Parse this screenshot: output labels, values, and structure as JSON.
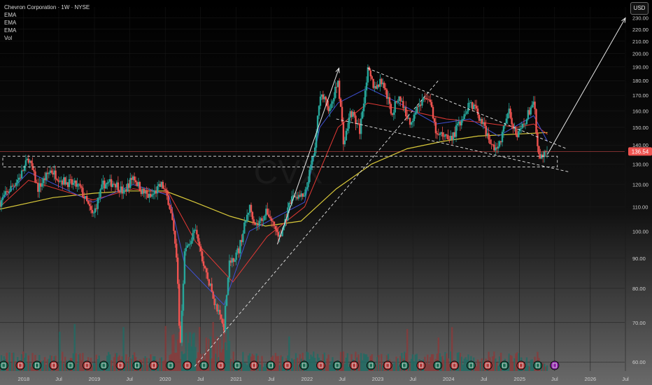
{
  "header": {
    "symbol_title": "Chevron Corporation · 1W · NYSE",
    "indicators": [
      "EMA",
      "EMA",
      "EMA",
      "Vol"
    ],
    "currency": "USD"
  },
  "watermark": {
    "ticker": "CVX"
  },
  "colors": {
    "up": "#26a69a",
    "down": "#ef5350",
    "ema_fast": "#3f51d6",
    "ema_mid": "#e53935",
    "ema_slow": "#d8c83a",
    "price_line": "#ef5350",
    "annotation": "#e6e6e6",
    "volume_up": "#1f6b64",
    "volume_down": "#8a3a3a"
  },
  "chart_data": {
    "type": "candlestick",
    "interval": "1W",
    "y_axis": {
      "min": 55,
      "max": 240,
      "scale": "log",
      "ticks": [
        60,
        70,
        80,
        90,
        100,
        110,
        120,
        130,
        140,
        150,
        160,
        170,
        180,
        190,
        200,
        210,
        220,
        230
      ]
    },
    "x_axis": {
      "range": [
        "2017-09-01",
        "2026-11-15"
      ],
      "ticks": [
        {
          "date": "2018-01-01",
          "label": "2018"
        },
        {
          "date": "2018-07-01",
          "label": "Jul"
        },
        {
          "date": "2019-01-01",
          "label": "2019"
        },
        {
          "date": "2019-07-01",
          "label": "Jul"
        },
        {
          "date": "2020-01-01",
          "label": "2020"
        },
        {
          "date": "2020-07-01",
          "label": "Jul"
        },
        {
          "date": "2021-01-01",
          "label": "2021"
        },
        {
          "date": "2021-07-01",
          "label": "Jul"
        },
        {
          "date": "2022-01-01",
          "label": "2022"
        },
        {
          "date": "2022-07-01",
          "label": "Jul"
        },
        {
          "date": "2023-01-01",
          "label": "2023"
        },
        {
          "date": "2023-07-01",
          "label": "Jul"
        },
        {
          "date": "2024-01-01",
          "label": "2024"
        },
        {
          "date": "2024-07-01",
          "label": "Jul"
        },
        {
          "date": "2025-01-01",
          "label": "2025"
        },
        {
          "date": "2025-07-01",
          "label": "Jul"
        },
        {
          "date": "2026-01-01",
          "label": "2026"
        },
        {
          "date": "2026-07-01",
          "label": "Jul"
        }
      ]
    },
    "price_path": [
      [
        "2017-09-01",
        112
      ],
      [
        "2017-12-15",
        124
      ],
      [
        "2018-01-26",
        133
      ],
      [
        "2018-03-15",
        118
      ],
      [
        "2018-05-20",
        127
      ],
      [
        "2018-07-15",
        122
      ],
      [
        "2018-09-15",
        120
      ],
      [
        "2018-10-15",
        119
      ],
      [
        "2018-12-24",
        106
      ],
      [
        "2019-02-15",
        120
      ],
      [
        "2019-04-15",
        121
      ],
      [
        "2019-06-01",
        116
      ],
      [
        "2019-07-20",
        124
      ],
      [
        "2019-09-01",
        117
      ],
      [
        "2019-10-15",
        114
      ],
      [
        "2019-12-15",
        120
      ],
      [
        "2020-01-20",
        112
      ],
      [
        "2020-02-25",
        95
      ],
      [
        "2020-03-18",
        62
      ],
      [
        "2020-04-10",
        92
      ],
      [
        "2020-06-05",
        100
      ],
      [
        "2020-07-15",
        88
      ],
      [
        "2020-09-15",
        75
      ],
      [
        "2020-10-30",
        69
      ],
      [
        "2020-11-25",
        88
      ],
      [
        "2021-01-15",
        93
      ],
      [
        "2021-03-10",
        110
      ],
      [
        "2021-04-15",
        102
      ],
      [
        "2021-06-10",
        108
      ],
      [
        "2021-08-15",
        97
      ],
      [
        "2021-10-20",
        115
      ],
      [
        "2021-12-20",
        114
      ],
      [
        "2022-02-15",
        140
      ],
      [
        "2022-03-08",
        172
      ],
      [
        "2022-05-01",
        160
      ],
      [
        "2022-06-10",
        180
      ],
      [
        "2022-07-10",
        140
      ],
      [
        "2022-08-15",
        160
      ],
      [
        "2022-10-01",
        148
      ],
      [
        "2022-11-10",
        187
      ],
      [
        "2022-12-15",
        175
      ],
      [
        "2023-01-25",
        180
      ],
      [
        "2023-03-15",
        158
      ],
      [
        "2023-04-20",
        170
      ],
      [
        "2023-06-15",
        152
      ],
      [
        "2023-07-20",
        162
      ],
      [
        "2023-09-20",
        170
      ],
      [
        "2023-10-30",
        145
      ],
      [
        "2023-12-20",
        146
      ],
      [
        "2024-01-20",
        144
      ],
      [
        "2024-03-20",
        158
      ],
      [
        "2024-04-20",
        166
      ],
      [
        "2024-06-15",
        155
      ],
      [
        "2024-08-05",
        140
      ],
      [
        "2024-09-15",
        138
      ],
      [
        "2024-11-05",
        160
      ],
      [
        "2024-12-20",
        144
      ],
      [
        "2025-02-05",
        155
      ],
      [
        "2025-03-15",
        167
      ],
      [
        "2025-04-08",
        133
      ],
      [
        "2025-05-10",
        135
      ],
      [
        "2025-05-25",
        136.54
      ]
    ],
    "ema_fast_path": [
      [
        "2017-09-01",
        112
      ],
      [
        "2018-01-26",
        126
      ],
      [
        "2018-12-24",
        112
      ],
      [
        "2019-07-20",
        120
      ],
      [
        "2020-01-20",
        115
      ],
      [
        "2020-04-10",
        88
      ],
      [
        "2020-10-30",
        75
      ],
      [
        "2021-03-10",
        100
      ],
      [
        "2021-12-20",
        112
      ],
      [
        "2022-03-08",
        150
      ],
      [
        "2022-06-10",
        165
      ],
      [
        "2022-11-10",
        175
      ],
      [
        "2023-04-20",
        165
      ],
      [
        "2023-10-30",
        152
      ],
      [
        "2024-04-20",
        155
      ],
      [
        "2024-09-15",
        145
      ],
      [
        "2025-03-15",
        157
      ],
      [
        "2025-05-25",
        142
      ]
    ],
    "ema_mid_path": [
      [
        "2017-09-01",
        110
      ],
      [
        "2018-01-26",
        122
      ],
      [
        "2018-12-24",
        113
      ],
      [
        "2019-07-20",
        118
      ],
      [
        "2020-01-20",
        116
      ],
      [
        "2020-06-05",
        96
      ],
      [
        "2020-12-15",
        82
      ],
      [
        "2021-06-10",
        98
      ],
      [
        "2021-12-20",
        110
      ],
      [
        "2022-06-10",
        150
      ],
      [
        "2022-11-10",
        165
      ],
      [
        "2023-06-15",
        160
      ],
      [
        "2023-12-20",
        155
      ],
      [
        "2024-06-15",
        153
      ],
      [
        "2024-12-20",
        150
      ],
      [
        "2025-03-15",
        152
      ],
      [
        "2025-05-25",
        146
      ]
    ],
    "ema_slow_path": [
      [
        "2017-09-01",
        109
      ],
      [
        "2018-06-01",
        114
      ],
      [
        "2019-01-01",
        116
      ],
      [
        "2019-07-01",
        117
      ],
      [
        "2020-01-01",
        117
      ],
      [
        "2020-06-01",
        112
      ],
      [
        "2020-12-01",
        106
      ],
      [
        "2021-06-01",
        102
      ],
      [
        "2021-12-01",
        104
      ],
      [
        "2022-06-01",
        118
      ],
      [
        "2022-12-01",
        130
      ],
      [
        "2023-06-01",
        138
      ],
      [
        "2023-12-01",
        142
      ],
      [
        "2024-06-01",
        145
      ],
      [
        "2024-12-01",
        146
      ],
      [
        "2025-05-25",
        147
      ]
    ],
    "annotations": {
      "support_zone": {
        "from": "2017-09-01",
        "to": "2025-07-15",
        "price_top": 134,
        "price_bottom": 128.5
      },
      "wedge_upper": {
        "from": [
          "2022-11-10",
          189
        ],
        "to": [
          "2025-09-01",
          138
        ]
      },
      "wedge_lower": {
        "from": [
          "2022-06-01",
          155
        ],
        "to": [
          "2025-09-15",
          126
        ]
      },
      "rally_arrow_2021": {
        "from": [
          "2021-08-01",
          95
        ],
        "to": [
          "2022-06-15",
          189
        ]
      },
      "trendline_2020": {
        "from": [
          "2020-06-01",
          59
        ],
        "to": [
          "2023-11-15",
          181
        ]
      },
      "projection_arrow": {
        "from": [
          "2025-05-25",
          135
        ],
        "to": [
          "2026-07-01",
          230
        ]
      }
    },
    "last_price": 136.54
  }
}
